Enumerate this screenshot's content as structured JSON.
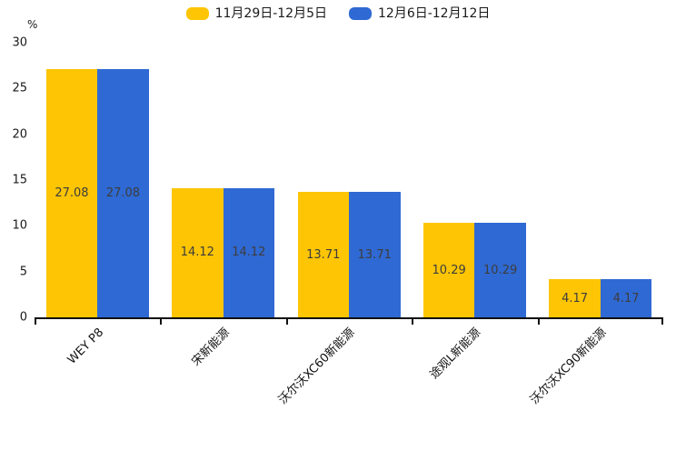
{
  "chart_data": {
    "type": "bar",
    "title": "",
    "categories": [
      "WEY P8",
      "宋新能源",
      "沃尔沃XC60新能源",
      "途观L新能源",
      "沃尔沃XC90新能源"
    ],
    "series": [
      {
        "name": "11月29日-12月5日",
        "color": "#FDC504",
        "values": [
          27.08,
          14.12,
          13.71,
          10.29,
          4.17
        ]
      },
      {
        "name": "12月6日-12月12日",
        "color": "#2F69D3",
        "values": [
          27.08,
          14.12,
          13.71,
          10.29,
          4.17
        ]
      }
    ],
    "xlabel": "",
    "ylabel": "%",
    "ylim": [
      0,
      30
    ],
    "yticks": [
      0,
      5,
      10,
      15,
      20,
      25,
      30
    ],
    "grid": false,
    "legend_position": "top-center",
    "value_labels": "inside-center",
    "value_label_color": "#3d3d3d",
    "axis_color": "#111111",
    "x_label_rotation_deg": -45
  }
}
